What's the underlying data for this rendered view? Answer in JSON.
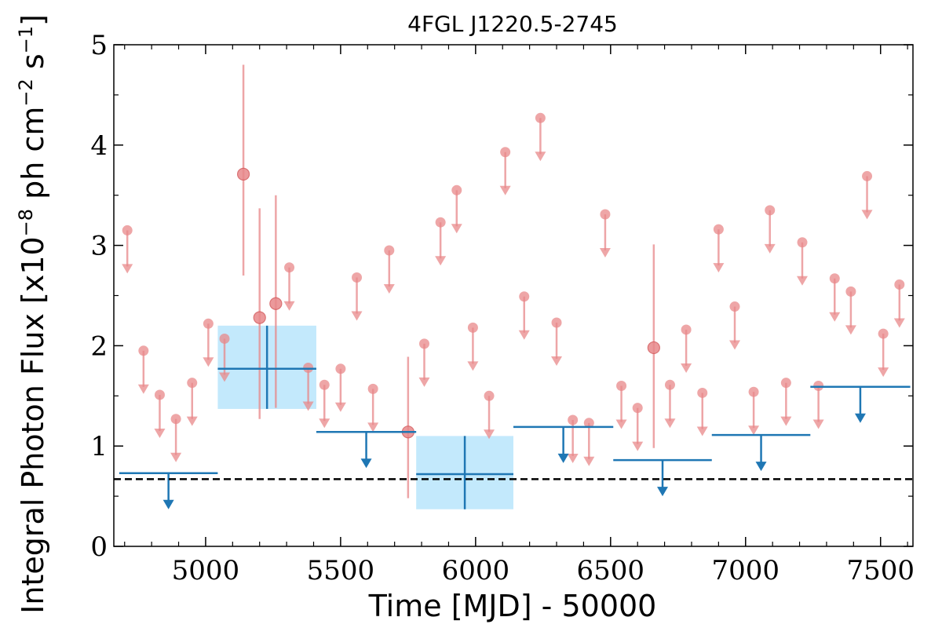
{
  "chart_data": {
    "type": "scatter",
    "title": "4FGL J1220.5-2745",
    "xlabel": "Time [MJD] - 50000",
    "ylabel": "Integral Photon Flux [x10$^{-8}$ ph cm$^{-2}$ s$^{-1}$]",
    "ylabel_parts": {
      "prefix": "Integral Photon Flux [x10",
      "sup1": "−8",
      "mid": " ph cm",
      "sup2": "−2",
      "space": " s",
      "sup3": "−1",
      "suffix": "]"
    },
    "xlim": [
      4660,
      7620
    ],
    "ylim": [
      0,
      5
    ],
    "xticks": [
      5000,
      5500,
      6000,
      6500,
      7000,
      7500
    ],
    "yticks": [
      0,
      1,
      2,
      3,
      4,
      5
    ],
    "grid": false,
    "reference_line": {
      "y": 0.67,
      "style": "dashed",
      "color": "#000000"
    },
    "colors": {
      "short_bins": "#e8888a",
      "long_bins": "#1f77b4",
      "long_bin_band": "#b9e5fb"
    },
    "series": [
      {
        "bin": "short",
        "upper_limits": [
          {
            "x": 4710,
            "y": 3.15
          },
          {
            "x": 4770,
            "y": 1.95
          },
          {
            "x": 4830,
            "y": 1.51
          },
          {
            "x": 4890,
            "y": 1.27
          },
          {
            "x": 4950,
            "y": 1.63
          },
          {
            "x": 5010,
            "y": 2.22
          },
          {
            "x": 5070,
            "y": 2.07
          },
          {
            "x": 5310,
            "y": 2.78
          },
          {
            "x": 5380,
            "y": 1.78
          },
          {
            "x": 5440,
            "y": 1.61
          },
          {
            "x": 5500,
            "y": 1.77
          },
          {
            "x": 5560,
            "y": 2.68
          },
          {
            "x": 5620,
            "y": 1.57
          },
          {
            "x": 5680,
            "y": 2.95
          },
          {
            "x": 5810,
            "y": 2.02
          },
          {
            "x": 5870,
            "y": 3.23
          },
          {
            "x": 5930,
            "y": 3.55
          },
          {
            "x": 5990,
            "y": 2.18
          },
          {
            "x": 6050,
            "y": 1.5
          },
          {
            "x": 6110,
            "y": 3.93
          },
          {
            "x": 6180,
            "y": 2.49
          },
          {
            "x": 6240,
            "y": 4.27
          },
          {
            "x": 6300,
            "y": 2.23
          },
          {
            "x": 6360,
            "y": 1.26
          },
          {
            "x": 6420,
            "y": 1.23
          },
          {
            "x": 6480,
            "y": 3.31
          },
          {
            "x": 6540,
            "y": 1.6
          },
          {
            "x": 6600,
            "y": 1.38
          },
          {
            "x": 6720,
            "y": 1.61
          },
          {
            "x": 6780,
            "y": 2.16
          },
          {
            "x": 6840,
            "y": 1.53
          },
          {
            "x": 6900,
            "y": 3.16
          },
          {
            "x": 6960,
            "y": 2.39
          },
          {
            "x": 7030,
            "y": 1.54
          },
          {
            "x": 7090,
            "y": 3.35
          },
          {
            "x": 7150,
            "y": 1.63
          },
          {
            "x": 7210,
            "y": 3.03
          },
          {
            "x": 7270,
            "y": 1.6
          },
          {
            "x": 7330,
            "y": 2.67
          },
          {
            "x": 7390,
            "y": 2.54
          },
          {
            "x": 7450,
            "y": 3.69
          },
          {
            "x": 7510,
            "y": 2.12
          },
          {
            "x": 7570,
            "y": 2.61
          }
        ],
        "detections": [
          {
            "x": 5140,
            "y": 3.71,
            "ylo": 2.7,
            "yhi": 4.8
          },
          {
            "x": 5200,
            "y": 2.28,
            "ylo": 1.27,
            "yhi": 3.37
          },
          {
            "x": 5260,
            "y": 2.42,
            "ylo": 1.38,
            "yhi": 3.5
          },
          {
            "x": 5750,
            "y": 1.14,
            "ylo": 0.48,
            "yhi": 1.89
          },
          {
            "x": 6660,
            "y": 1.98,
            "ylo": 0.98,
            "yhi": 3.01
          }
        ]
      },
      {
        "bin": "long",
        "upper_limits": [
          {
            "x0": 4680,
            "x1": 5045,
            "y": 0.73
          },
          {
            "x0": 5410,
            "x1": 5780,
            "y": 1.14
          },
          {
            "x0": 6140,
            "x1": 6510,
            "y": 1.19
          },
          {
            "x0": 6510,
            "x1": 6875,
            "y": 0.86
          },
          {
            "x0": 6875,
            "x1": 7240,
            "y": 1.11
          },
          {
            "x0": 7240,
            "x1": 7610,
            "y": 1.59
          }
        ],
        "detections": [
          {
            "x0": 5045,
            "x1": 5410,
            "y": 1.77,
            "ylo": 1.37,
            "yhi": 2.2
          },
          {
            "x0": 5780,
            "x1": 6140,
            "y": 0.72,
            "ylo": 0.37,
            "yhi": 1.1
          }
        ]
      }
    ]
  }
}
